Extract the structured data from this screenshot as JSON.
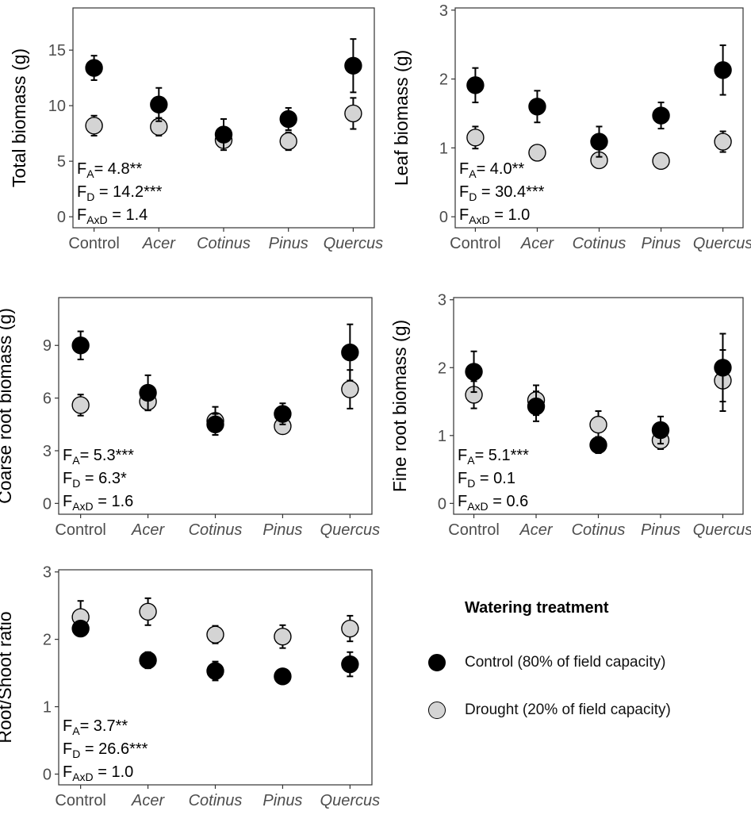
{
  "chart_data": [
    {
      "type": "scatter",
      "ylabel": "Total biomass (g)",
      "ylim": [
        0,
        18.6
      ],
      "yticks": [
        0,
        5,
        10,
        15
      ],
      "categories": [
        "Control",
        "Acer",
        "Cotinus",
        "Pinus",
        "Quercus"
      ],
      "italic_categories": [
        false,
        true,
        true,
        true,
        true
      ],
      "series": [
        {
          "name": "Control (80% of field capacity)",
          "values": [
            13.4,
            10.1,
            7.4,
            8.8,
            13.6
          ],
          "err": [
            1.1,
            1.5,
            1.4,
            1.0,
            2.4
          ]
        },
        {
          "name": "Drought (20% of field capacity)",
          "values": [
            8.2,
            8.1,
            6.9,
            6.8,
            9.3
          ],
          "err": [
            0.9,
            0.8,
            0.3,
            0.8,
            1.4
          ]
        }
      ],
      "stats": [
        {
          "base": "F",
          "sub": "A",
          "rest": "= 4.8**"
        },
        {
          "base": "F",
          "sub": "D",
          "rest": " = 14.2***"
        },
        {
          "base": "F",
          "sub": "AxD",
          "rest": " = 1.4"
        }
      ]
    },
    {
      "type": "scatter",
      "ylabel": "Leaf biomass (g)",
      "ylim": [
        0,
        3
      ],
      "yticks": [
        0,
        1,
        2,
        3
      ],
      "categories": [
        "Control",
        "Acer",
        "Cotinus",
        "Pinus",
        "Quercus"
      ],
      "italic_categories": [
        false,
        true,
        true,
        true,
        true
      ],
      "series": [
        {
          "name": "Control (80% of field capacity)",
          "values": [
            1.91,
            1.6,
            1.09,
            1.47,
            2.13
          ],
          "err": [
            0.25,
            0.23,
            0.22,
            0.19,
            0.36
          ]
        },
        {
          "name": "Drought (20% of field capacity)",
          "values": [
            1.15,
            0.93,
            0.82,
            0.81,
            1.09
          ],
          "err": [
            0.16,
            0.07,
            0.03,
            0.05,
            0.15
          ]
        }
      ],
      "stats": [
        {
          "base": "F",
          "sub": "A",
          "rest": "= 4.0**"
        },
        {
          "base": "F",
          "sub": "D",
          "rest": " = 30.4***"
        },
        {
          "base": "F",
          "sub": "AxD",
          "rest": " = 1.0"
        }
      ]
    },
    {
      "type": "scatter",
      "ylabel": "Coarse root biomass (g)",
      "ylim": [
        0,
        11.6
      ],
      "yticks": [
        0,
        3,
        6,
        9
      ],
      "categories": [
        "Control",
        "Acer",
        "Cotinus",
        "Pinus",
        "Quercus"
      ],
      "italic_categories": [
        false,
        true,
        true,
        true,
        true
      ],
      "series": [
        {
          "name": "Control (80% of field capacity)",
          "values": [
            9.0,
            6.3,
            4.5,
            5.1,
            8.6
          ],
          "err": [
            0.8,
            1.0,
            0.6,
            0.6,
            1.6
          ]
        },
        {
          "name": "Drought (20% of field capacity)",
          "values": [
            5.6,
            5.8,
            4.7,
            4.4,
            6.5
          ],
          "err": [
            0.6,
            0.5,
            0.8,
            0.4,
            1.1
          ]
        }
      ],
      "stats": [
        {
          "base": "F",
          "sub": "A",
          "rest": "= 5.3***"
        },
        {
          "base": "F",
          "sub": "D",
          "rest": " = 6.3*"
        },
        {
          "base": "F",
          "sub": "AxD",
          "rest": " = 1.6"
        }
      ]
    },
    {
      "type": "scatter",
      "ylabel": "Fine root biomass (g)",
      "ylim": [
        0,
        3
      ],
      "yticks": [
        0,
        1,
        2,
        3
      ],
      "categories": [
        "Control",
        "Acer",
        "Cotinus",
        "Pinus",
        "Quercus"
      ],
      "italic_categories": [
        false,
        true,
        true,
        true,
        true
      ],
      "series": [
        {
          "name": "Control (80% of field capacity)",
          "values": [
            1.94,
            1.43,
            0.86,
            1.08,
            2.0
          ],
          "err": [
            0.3,
            0.22,
            0.12,
            0.2,
            0.5
          ]
        },
        {
          "name": "Drought (20% of field capacity)",
          "values": [
            1.6,
            1.52,
            1.16,
            0.93,
            1.81
          ],
          "err": [
            0.2,
            0.22,
            0.2,
            0.13,
            0.45
          ]
        }
      ],
      "stats": [
        {
          "base": "F",
          "sub": "A",
          "rest": "= 5.1***"
        },
        {
          "base": "F",
          "sub": "D",
          "rest": " = 0.1"
        },
        {
          "base": "F",
          "sub": "AxD",
          "rest": " = 0.6"
        }
      ]
    },
    {
      "type": "scatter",
      "ylabel": "Root/Shoot ratio",
      "ylim": [
        0,
        3
      ],
      "yticks": [
        0,
        1,
        2,
        3
      ],
      "categories": [
        "Control",
        "Acer",
        "Cotinus",
        "Pinus",
        "Quercus"
      ],
      "italic_categories": [
        false,
        true,
        true,
        true,
        true
      ],
      "series": [
        {
          "name": "Control (80% of field capacity)",
          "values": [
            2.16,
            1.69,
            1.53,
            1.45,
            1.63
          ],
          "err": [
            0.08,
            0.12,
            0.14,
            0.1,
            0.18
          ]
        },
        {
          "name": "Drought (20% of field capacity)",
          "values": [
            2.33,
            2.41,
            2.07,
            2.04,
            2.16
          ],
          "err": [
            0.24,
            0.2,
            0.13,
            0.17,
            0.19
          ]
        }
      ],
      "stats": [
        {
          "base": "F",
          "sub": "A",
          "rest": "= 3.7**"
        },
        {
          "base": "F",
          "sub": "D",
          "rest": " = 26.6***"
        },
        {
          "base": "F",
          "sub": "AxD",
          "rest": " = 1.0"
        }
      ]
    }
  ],
  "legend": {
    "title": "Watering treatment",
    "items": [
      {
        "label": "Control (80% of field capacity)",
        "color": "#000000"
      },
      {
        "label": "Drought (20% of field capacity)",
        "color": "#d4d4d4"
      }
    ]
  },
  "colors": {
    "control": "#000000",
    "drought": "#d4d4d4",
    "axis": "#333333",
    "tick_label": "#4d4d4d"
  }
}
